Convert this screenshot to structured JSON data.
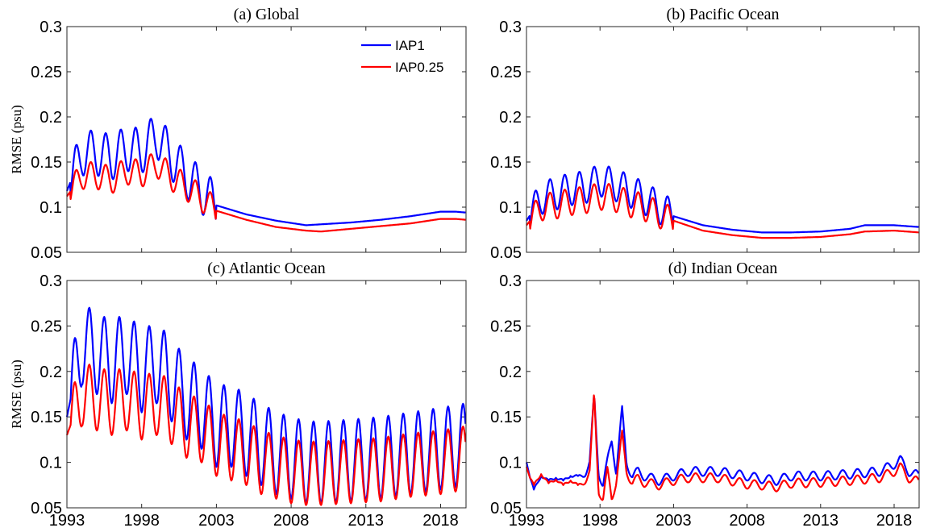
{
  "colors": {
    "IAP1": "#0000ff",
    "IAP0.25": "#ff0000"
  },
  "legend_position": "top-right of panel (a)",
  "chart_data": [
    {
      "type": "line",
      "title": "(a) Global",
      "ylabel": "RMSE (psu)",
      "xlim": [
        1993,
        2019.7
      ],
      "ylim": [
        0.05,
        0.3
      ],
      "yticks": [
        "0.05",
        "0.1",
        "0.15",
        "0.2",
        "0.25",
        "0.3"
      ],
      "xticks": [
        "1993",
        "1998",
        "2003",
        "2008",
        "2013",
        "2018"
      ],
      "show_xticklabels": false,
      "grid": false,
      "legend": [
        "IAP1",
        "IAP0.25"
      ],
      "seasonal": {
        "start": 1993.25,
        "end": 2003.0,
        "phase": 1993.6,
        "amp_hi": 0.025,
        "amp_lo": 0.015
      },
      "series": [
        {
          "name": "IAP1",
          "x": [
            1993,
            1994,
            1995,
            1996,
            1997,
            1998,
            1999,
            2000,
            2001,
            2002,
            2003,
            2005,
            2007,
            2009,
            2010,
            2012,
            2014,
            2016,
            2018,
            2019,
            2019.7
          ],
          "y": [
            0.118,
            0.16,
            0.16,
            0.155,
            0.165,
            0.162,
            0.18,
            0.155,
            0.135,
            0.118,
            0.102,
            0.092,
            0.085,
            0.08,
            0.081,
            0.083,
            0.086,
            0.09,
            0.095,
            0.095,
            0.094
          ]
        },
        {
          "name": "IAP0.25",
          "x": [
            1993,
            1994,
            1995,
            1996,
            1997,
            1998,
            1999,
            2000,
            2001,
            2002,
            2003,
            2005,
            2007,
            2009,
            2010,
            2012,
            2014,
            2016,
            2018,
            2019,
            2019.7
          ],
          "y": [
            0.112,
            0.135,
            0.135,
            0.13,
            0.14,
            0.137,
            0.148,
            0.133,
            0.122,
            0.11,
            0.096,
            0.086,
            0.078,
            0.074,
            0.073,
            0.076,
            0.079,
            0.082,
            0.087,
            0.087,
            0.086
          ]
        }
      ]
    },
    {
      "type": "line",
      "title": "(b) Pacific Ocean",
      "ylabel": "",
      "xlim": [
        1993,
        2019.7
      ],
      "ylim": [
        0.05,
        0.3
      ],
      "yticks": [
        "0.05",
        "0.1",
        "0.15",
        "0.2",
        "0.25",
        "0.3"
      ],
      "xticks": [
        "1993",
        "1998",
        "2003",
        "2008",
        "2013",
        "2018"
      ],
      "show_xticklabels": false,
      "grid": false,
      "legend": [],
      "seasonal": {
        "start": 1993.25,
        "end": 2003.0,
        "phase": 1993.6,
        "amp_hi": 0.018,
        "amp_lo": 0.015
      },
      "series": [
        {
          "name": "IAP1",
          "x": [
            1993,
            1994,
            1995,
            1996,
            1997,
            1998,
            1999,
            2000,
            2001,
            2002,
            2003,
            2005,
            2007,
            2009,
            2011,
            2013,
            2015,
            2016,
            2018,
            2019.7
          ],
          "y": [
            0.085,
            0.11,
            0.115,
            0.12,
            0.122,
            0.13,
            0.125,
            0.118,
            0.11,
            0.1,
            0.09,
            0.08,
            0.075,
            0.072,
            0.072,
            0.073,
            0.076,
            0.08,
            0.08,
            0.078
          ]
        },
        {
          "name": "IAP0.25",
          "x": [
            1993,
            1994,
            1995,
            1996,
            1997,
            1998,
            1999,
            2000,
            2001,
            2002,
            2003,
            2005,
            2007,
            2009,
            2011,
            2013,
            2015,
            2016,
            2018,
            2019.7
          ],
          "y": [
            0.08,
            0.1,
            0.102,
            0.106,
            0.108,
            0.112,
            0.11,
            0.104,
            0.1,
            0.092,
            0.085,
            0.074,
            0.069,
            0.066,
            0.066,
            0.067,
            0.07,
            0.073,
            0.074,
            0.072
          ]
        }
      ]
    },
    {
      "type": "line",
      "title": "(c) Atlantic Ocean",
      "ylabel": "RMSE (psu)",
      "xlim": [
        1993,
        2019.7
      ],
      "ylim": [
        0.05,
        0.3
      ],
      "yticks": [
        "0.05",
        "0.1",
        "0.15",
        "0.2",
        "0.25",
        "0.3"
      ],
      "xticks": [
        "1993",
        "1998",
        "2003",
        "2008",
        "2013",
        "2018"
      ],
      "show_xticklabels": true,
      "grid": false,
      "legend": [],
      "seasonal": {
        "start": 1993.25,
        "end": 2019.7,
        "phase": 1993.5,
        "amp_hi": 0.045,
        "amp_lo": 0.035
      },
      "series": [
        {
          "name": "IAP1",
          "x": [
            1993,
            1994,
            1995,
            1996,
            1997,
            1998,
            1999,
            2000,
            2001,
            2002,
            2003,
            2004,
            2005,
            2006,
            2007,
            2008,
            2009,
            2010,
            2012,
            2014,
            2016,
            2018,
            2019.7
          ],
          "y": [
            0.15,
            0.23,
            0.22,
            0.21,
            0.22,
            0.2,
            0.21,
            0.19,
            0.17,
            0.16,
            0.14,
            0.14,
            0.13,
            0.12,
            0.11,
            0.105,
            0.1,
            0.1,
            0.102,
            0.105,
            0.11,
            0.115,
            0.12
          ]
        },
        {
          "name": "IAP0.25",
          "x": [
            1993,
            1994,
            1995,
            1996,
            1997,
            1998,
            1999,
            2000,
            2001,
            2002,
            2003,
            2004,
            2005,
            2006,
            2007,
            2008,
            2009,
            2010,
            2012,
            2014,
            2016,
            2018,
            2019.7
          ],
          "y": [
            0.13,
            0.175,
            0.17,
            0.165,
            0.17,
            0.16,
            0.165,
            0.155,
            0.14,
            0.135,
            0.12,
            0.115,
            0.11,
            0.1,
            0.095,
            0.09,
            0.088,
            0.088,
            0.09,
            0.092,
            0.097,
            0.1,
            0.105
          ]
        }
      ]
    },
    {
      "type": "line",
      "title": "(d) Indian Ocean",
      "ylabel": "",
      "xlim": [
        1993,
        2019.7
      ],
      "ylim": [
        0.05,
        0.3
      ],
      "yticks": [
        "0.05",
        "0.1",
        "0.15",
        "0.2",
        "0.25",
        "0.3"
      ],
      "xticks": [
        "1993",
        "1998",
        "2003",
        "2008",
        "2013",
        "2018"
      ],
      "show_xticklabels": true,
      "grid": false,
      "legend": [],
      "seasonal": {
        "start": 1993.25,
        "end": 2019.7,
        "phase": 1993.5,
        "amp_hi": 0.005,
        "amp_lo": 0.005
      },
      "series": [
        {
          "name": "IAP1",
          "x": [
            1993,
            1993.5,
            1994,
            1994.5,
            1995,
            1995.5,
            1996,
            1996.5,
            1997,
            1997.3,
            1997.6,
            1997.9,
            1998.2,
            1998.5,
            1998.8,
            1999.1,
            1999.5,
            1999.8,
            2000.2,
            2000.6,
            2001,
            2002,
            2003,
            2004,
            2006,
            2008,
            2009,
            2010,
            2011,
            2013,
            2015,
            2017,
            2018,
            2018.4,
            2019,
            2019.7
          ],
          "y": [
            0.1,
            0.065,
            0.09,
            0.075,
            0.088,
            0.075,
            0.09,
            0.08,
            0.09,
            0.1,
            0.172,
            0.09,
            0.075,
            0.1,
            0.125,
            0.09,
            0.157,
            0.1,
            0.085,
            0.09,
            0.085,
            0.08,
            0.085,
            0.09,
            0.09,
            0.085,
            0.082,
            0.08,
            0.085,
            0.085,
            0.087,
            0.09,
            0.098,
            0.103,
            0.09,
            0.085
          ]
        },
        {
          "name": "IAP0.25",
          "x": [
            1993,
            1993.5,
            1994,
            1994.5,
            1995,
            1995.5,
            1996,
            1996.5,
            1997,
            1997.3,
            1997.6,
            1997.9,
            1998.2,
            1998.5,
            1998.8,
            1999.1,
            1999.5,
            1999.8,
            2000.2,
            2000.6,
            2001,
            2002,
            2003,
            2004,
            2006,
            2008,
            2009,
            2010,
            2011,
            2013,
            2015,
            2017,
            2018,
            2018.4,
            2019,
            2019.7
          ],
          "y": [
            0.095,
            0.07,
            0.092,
            0.072,
            0.086,
            0.07,
            0.085,
            0.07,
            0.082,
            0.09,
            0.174,
            0.07,
            0.06,
            0.09,
            0.06,
            0.08,
            0.13,
            0.09,
            0.078,
            0.082,
            0.078,
            0.075,
            0.08,
            0.083,
            0.083,
            0.076,
            0.075,
            0.073,
            0.077,
            0.078,
            0.08,
            0.083,
            0.09,
            0.095,
            0.083,
            0.078
          ]
        }
      ]
    }
  ]
}
